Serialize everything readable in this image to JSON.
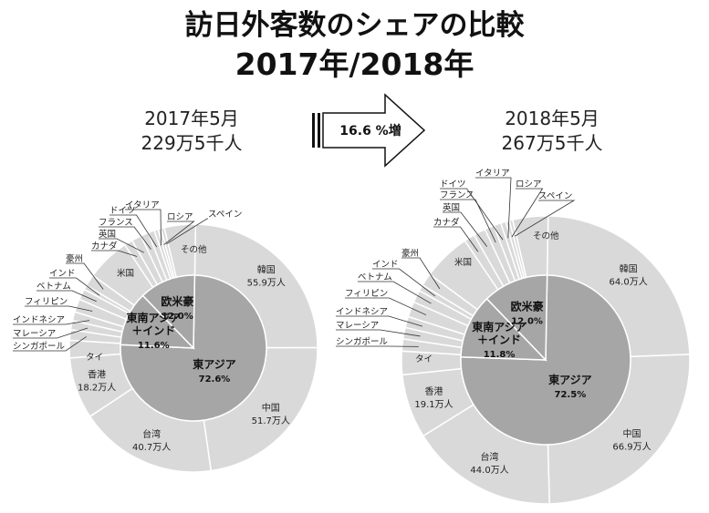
{
  "page": {
    "title_line1": "訪日外客数のシェアの比較",
    "title_line2": "2017年/2018年",
    "growth_label": "16.6 %増"
  },
  "colors": {
    "outer": "#d9d9d9",
    "inner": "#a6a6a6",
    "stroke": "#ffffff",
    "leader": "#333333"
  },
  "chart_data": [
    {
      "type": "pie",
      "period": "2017年5月",
      "total": "229万5千人",
      "inner": [
        {
          "name": "東アジア",
          "pct": "72.6%",
          "value": 72.6
        },
        {
          "name": "東南アジア\n＋インド",
          "pct": "11.6%",
          "value": 11.6
        },
        {
          "name": "欧米豪",
          "pct": "12.0%",
          "value": 12.0
        }
      ],
      "outer": [
        {
          "name": "韓国",
          "value_label": "55.9万人",
          "value": 55.9
        },
        {
          "name": "中国",
          "value_label": "51.7万人",
          "value": 51.7
        },
        {
          "name": "台湾",
          "value_label": "40.7万人",
          "value": 40.7
        },
        {
          "name": "香港",
          "value_label": "18.2万人",
          "value": 18.2
        },
        {
          "name": "タイ",
          "value": 5.2
        },
        {
          "name": "シンガポール",
          "value": 3.1
        },
        {
          "name": "マレーシア",
          "value": 2.7
        },
        {
          "name": "インドネシア",
          "value": 2.6
        },
        {
          "name": "フィリピン",
          "value": 3.9
        },
        {
          "name": "ベトナム",
          "value": 3.2
        },
        {
          "name": "インド",
          "value": 1.3
        },
        {
          "name": "豪州",
          "value": 3.5
        },
        {
          "name": "米国",
          "value": 12.9
        },
        {
          "name": "カナダ",
          "value": 2.5
        },
        {
          "name": "英国",
          "value": 2.9
        },
        {
          "name": "フランス",
          "value": 2.3
        },
        {
          "name": "ドイツ",
          "value": 1.9
        },
        {
          "name": "イタリア",
          "value": 1.1
        },
        {
          "name": "ロシア",
          "value": 0.9
        },
        {
          "name": "スペイン",
          "value": 1.0
        },
        {
          "name": "その他",
          "value": 9.2
        }
      ]
    },
    {
      "type": "pie",
      "period": "2018年5月",
      "total": "267万5千人",
      "inner": [
        {
          "name": "東アジア",
          "pct": "72.5%",
          "value": 72.5
        },
        {
          "name": "東南アジア\n＋インド",
          "pct": "11.8%",
          "value": 11.8
        },
        {
          "name": "欧米豪",
          "pct": "12.0%",
          "value": 12.0
        }
      ],
      "outer": [
        {
          "name": "韓国",
          "value_label": "64.0万人",
          "value": 64.0
        },
        {
          "name": "中国",
          "value_label": "66.9万人",
          "value": 66.9
        },
        {
          "name": "台湾",
          "value_label": "44.0万人",
          "value": 44.0
        },
        {
          "name": "香港",
          "value_label": "19.1万人",
          "value": 19.1
        },
        {
          "name": "タイ",
          "value": 7.0
        },
        {
          "name": "シンガポール",
          "value": 3.6
        },
        {
          "name": "マレーシア",
          "value": 3.4
        },
        {
          "name": "インドネシア",
          "value": 3.3
        },
        {
          "name": "フィリピン",
          "value": 4.6
        },
        {
          "name": "ベトナム",
          "value": 3.7
        },
        {
          "name": "インド",
          "value": 1.9
        },
        {
          "name": "豪州",
          "value": 3.8
        },
        {
          "name": "米国",
          "value": 14.3
        },
        {
          "name": "カナダ",
          "value": 3.2
        },
        {
          "name": "英国",
          "value": 3.6
        },
        {
          "name": "フランス",
          "value": 2.8
        },
        {
          "name": "ドイツ",
          "value": 2.2
        },
        {
          "name": "イタリア",
          "value": 1.5
        },
        {
          "name": "ロシア",
          "value": 1.1
        },
        {
          "name": "スペイン",
          "value": 1.0
        },
        {
          "name": "その他",
          "value": 10.5
        }
      ]
    }
  ]
}
